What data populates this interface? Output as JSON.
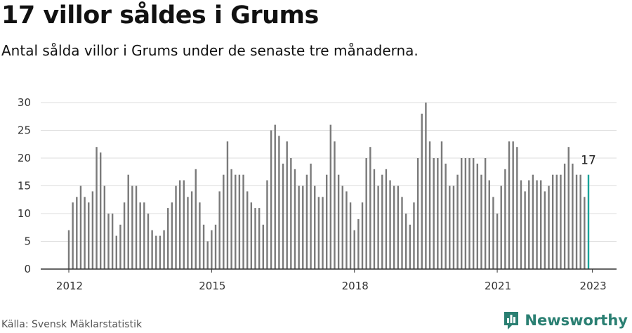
{
  "title": "17 villor såldes i Grums",
  "subtitle": "Antal sålda villor i Grums under de senaste tre månaderna.",
  "source": "Källa: Svensk Mäklarstatistik",
  "brand": "Newsworthy",
  "colors": {
    "bar": "#7a7a7a",
    "highlight": "#19a39a",
    "grid": "#dddddd",
    "axis": "#333333",
    "brand": "#2a7f72"
  },
  "chart_data": {
    "type": "bar",
    "start": "2012-01",
    "ylim": [
      0,
      30
    ],
    "yticks": [
      0,
      5,
      10,
      15,
      20,
      25,
      30
    ],
    "xtick_labels": [
      "2012",
      "2015",
      "2018",
      "2021",
      "2023"
    ],
    "grid": true,
    "highlight_label": "17",
    "values": [
      7,
      12,
      13,
      15,
      13,
      12,
      14,
      22,
      21,
      15,
      10,
      10,
      6,
      8,
      12,
      17,
      15,
      15,
      12,
      12,
      10,
      7,
      6,
      6,
      7,
      11,
      12,
      15,
      16,
      16,
      13,
      14,
      18,
      12,
      8,
      5,
      7,
      8,
      14,
      17,
      23,
      18,
      17,
      17,
      17,
      14,
      12,
      11,
      11,
      8,
      16,
      25,
      26,
      24,
      19,
      23,
      20,
      18,
      15,
      15,
      17,
      19,
      15,
      13,
      13,
      17,
      26,
      23,
      17,
      15,
      14,
      12,
      7,
      9,
      12,
      20,
      22,
      18,
      15,
      17,
      18,
      16,
      15,
      15,
      13,
      10,
      8,
      12,
      20,
      28,
      30,
      23,
      20,
      20,
      23,
      19,
      15,
      15,
      17,
      20,
      20,
      20,
      20,
      19,
      17,
      20,
      16,
      13,
      10,
      15,
      18,
      23,
      23,
      22,
      16,
      14,
      16,
      17,
      16,
      16,
      14,
      15,
      17,
      17,
      17,
      19,
      22,
      19,
      17,
      17,
      13,
      17
    ]
  }
}
